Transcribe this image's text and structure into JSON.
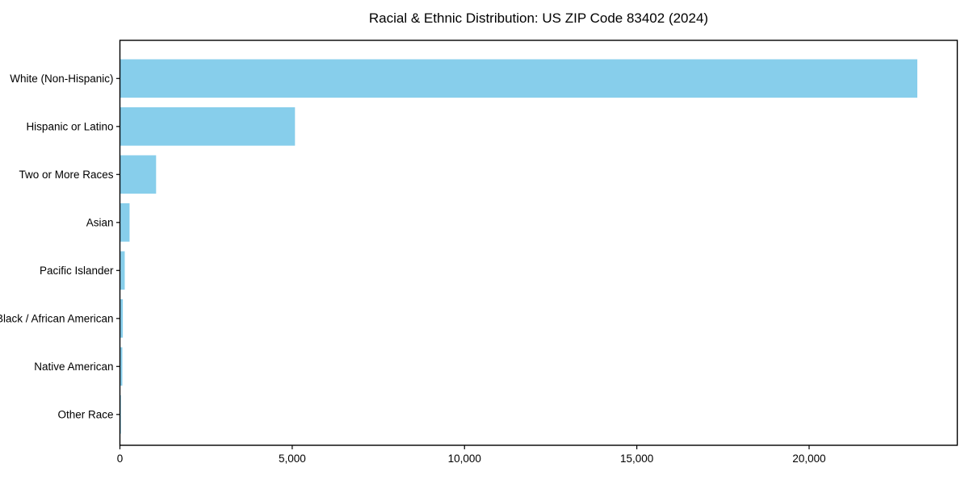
{
  "chart_data": {
    "type": "bar",
    "orientation": "horizontal",
    "title": "Racial & Ethnic Distribution: US ZIP Code 83402 (2024)",
    "categories": [
      "White (Non-Hispanic)",
      "Hispanic or Latino",
      "Two or More Races",
      "Asian",
      "Pacific Islander",
      "Black / African American",
      "Native American",
      "Other Race"
    ],
    "values": [
      23140,
      5080,
      1050,
      280,
      140,
      85,
      70,
      30
    ],
    "xlabel": "",
    "ylabel": "",
    "xlim": [
      0,
      24300
    ],
    "xticks": [
      0,
      5000,
      10000,
      15000,
      20000
    ],
    "xtick_labels": [
      "0",
      "5,000",
      "10,000",
      "15,000",
      "20,000"
    ],
    "bar_color": "#87CEEB",
    "axis_color": "#000000",
    "text_color": "#000000",
    "background_color": "#ffffff",
    "grid": false,
    "legend": null
  }
}
